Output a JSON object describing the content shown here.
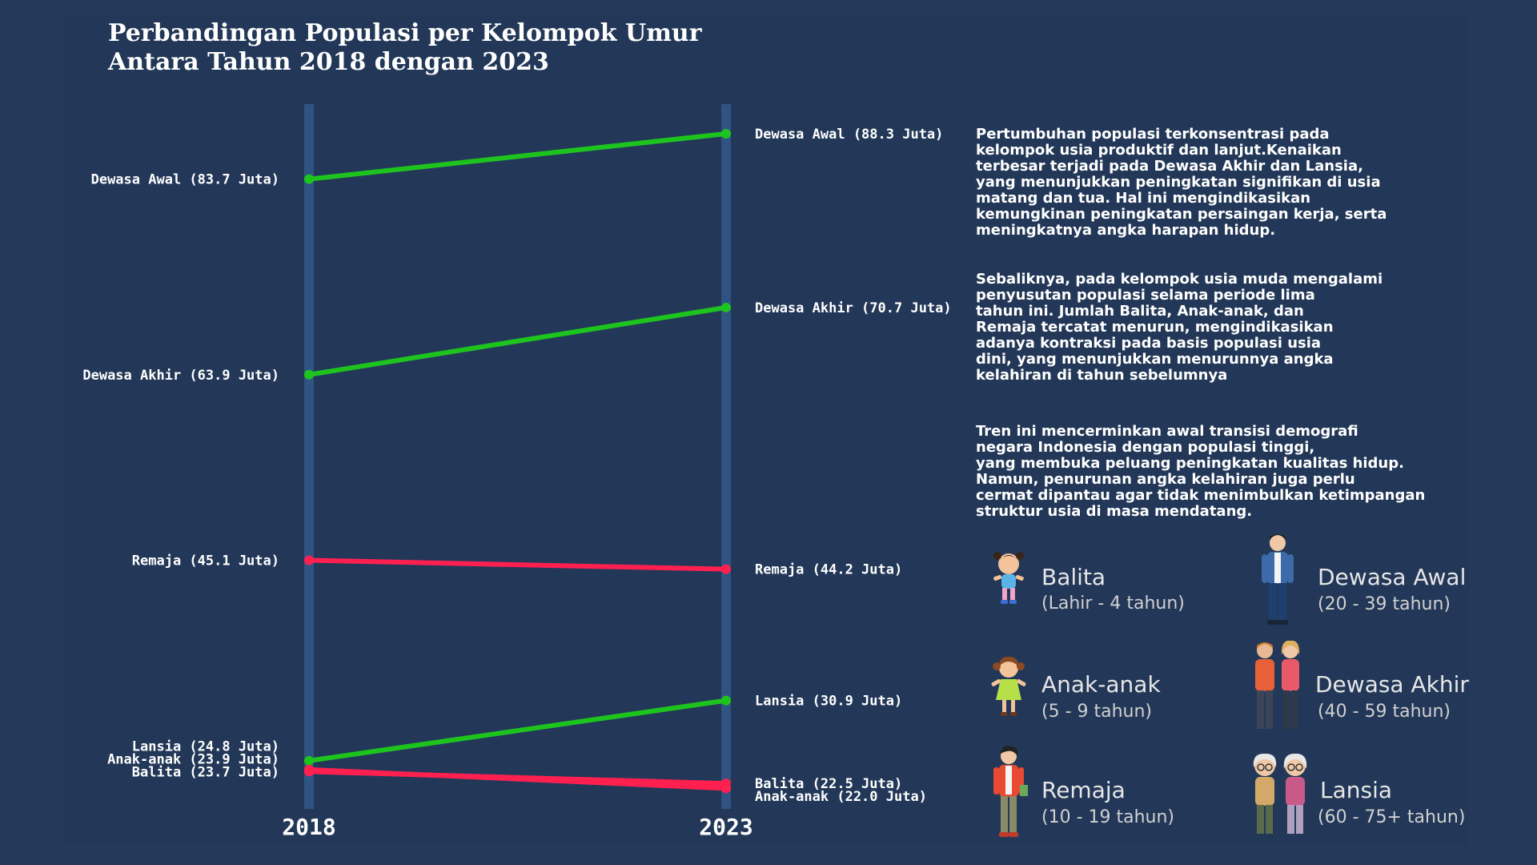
{
  "title_lines": [
    "Perbandingan Populasi per Kelompok Umur",
    "Antara Tahun 2018 dengan 2023"
  ],
  "colors": {
    "increase": "#1ec41e",
    "decrease": "#ff2050",
    "axis": "#2f5382",
    "background": "#253a5a"
  },
  "chart_data": {
    "type": "slope",
    "x": [
      "2018",
      "2023"
    ],
    "series": [
      {
        "name": "Dewasa Awal",
        "values": [
          83.7,
          88.3
        ],
        "label_2018": "Dewasa Awal (83.7 Juta)",
        "label_2023": "Dewasa Awal (88.3 Juta)",
        "trend": "increase"
      },
      {
        "name": "Dewasa Akhir",
        "values": [
          63.9,
          70.7
        ],
        "label_2018": "Dewasa Akhir (63.9 Juta)",
        "label_2023": "Dewasa Akhir (70.7 Juta)",
        "trend": "increase"
      },
      {
        "name": "Remaja",
        "values": [
          45.1,
          44.2
        ],
        "label_2018": "Remaja (45.1 Juta)",
        "label_2023": "Remaja (44.2 Juta)",
        "trend": "decrease"
      },
      {
        "name": "Lansia",
        "values": [
          24.8,
          30.9
        ],
        "label_2018": "Lansia (24.8 Juta)",
        "label_2023": "Lansia (30.9 Juta)",
        "trend": "increase"
      },
      {
        "name": "Anak-anak",
        "values": [
          23.9,
          22.0
        ],
        "label_2018": "Anak-anak (23.9 Juta)",
        "label_2023": "Anak-anak (22.0 Juta)",
        "trend": "decrease"
      },
      {
        "name": "Balita",
        "values": [
          23.7,
          22.5
        ],
        "label_2018": "Balita (23.7 Juta)",
        "label_2023": "Balita (22.5 Juta)",
        "trend": "decrease"
      }
    ],
    "title": "Perbandingan Populasi per Kelompok Umur Antara Tahun 2018 dengan 2023"
  },
  "paragraphs": [
    "Pertumbuhan populasi terkonsentrasi pada\nkelompok usia produktif dan lanjut.Kenaikan\nterbesar terjadi pada Dewasa Akhir dan Lansia,\nyang menunjukkan peningkatan signifikan di usia\nmatang dan tua. Hal ini mengindikasikan\nkemungkinan peningkatan persaingan kerja, serta\nmeningkatnya angka harapan hidup.",
    "Sebaliknya, pada kelompok usia muda mengalami\npenyusutan populasi selama periode lima\ntahun ini. Jumlah Balita, Anak-anak, dan\nRemaja tercatat menurun, mengindikasikan\nadanya kontraksi pada basis populasi usia\ndini, yang menunjukkan menurunnya angka\nkelahiran di tahun sebelumnya",
    "Tren ini mencerminkan awal transisi demografi\nnegara Indonesia dengan populasi tinggi,\nyang membuka peluang peningkatan kualitas hidup.\nNamun, penurunan angka kelahiran juga perlu\ncermat dipantau agar tidak menimbulkan ketimpangan\nstruktur usia di masa mendatang."
  ],
  "legend": [
    {
      "name": "Balita",
      "range": "(Lahir - 4 tahun)",
      "icon": "toddler-icon"
    },
    {
      "name": "Dewasa Awal",
      "range": "(20 - 39 tahun)",
      "icon": "young-adult-icon"
    },
    {
      "name": "Anak-anak",
      "range": "(5 -  9 tahun)",
      "icon": "child-icon"
    },
    {
      "name": "Dewasa Akhir",
      "range": "(40 - 59 tahun)",
      "icon": "middle-aged-couple-icon"
    },
    {
      "name": "Remaja",
      "range": "(10 -  19 tahun)",
      "icon": "teenager-icon"
    },
    {
      "name": "Lansia",
      "range": "(60 - 75+ tahun)",
      "icon": "elderly-couple-icon"
    }
  ]
}
